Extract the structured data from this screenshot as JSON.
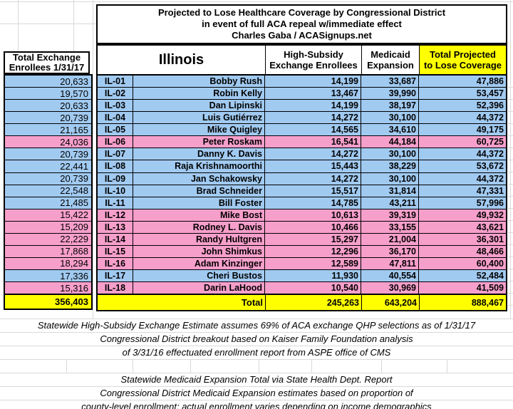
{
  "title": {
    "lines": [
      "Projected to Lose Healthcare Coverage by Congressional District",
      "in event of full ACA repeal w/immediate effect",
      "Charles Gaba / ACASignups.net"
    ]
  },
  "left_table": {
    "header": [
      "Total Exchange",
      "Enrollees 1/31/17"
    ],
    "total": "356,403"
  },
  "main_table": {
    "state": "Illinois",
    "headers": {
      "high_subsidy": [
        "High-Subsidy",
        "Exchange Enrollees"
      ],
      "medicaid": [
        "Medicaid",
        "Expansion"
      ],
      "total": [
        "Total Projected",
        "to Lose Coverage"
      ]
    },
    "rows": [
      {
        "district": "IL-01",
        "name": "Bobby Rush",
        "exchange_enrollees": "20,633",
        "high_subsidy": "14,199",
        "medicaid": "33,687",
        "total": "47,886",
        "party": "dem"
      },
      {
        "district": "IL-02",
        "name": "Robin Kelly",
        "exchange_enrollees": "19,570",
        "high_subsidy": "13,467",
        "medicaid": "39,990",
        "total": "53,457",
        "party": "dem"
      },
      {
        "district": "IL-03",
        "name": "Dan Lipinski",
        "exchange_enrollees": "20,633",
        "high_subsidy": "14,199",
        "medicaid": "38,197",
        "total": "52,396",
        "party": "dem"
      },
      {
        "district": "IL-04",
        "name": "Luis Gutiérrez",
        "exchange_enrollees": "20,739",
        "high_subsidy": "14,272",
        "medicaid": "30,100",
        "total": "44,372",
        "party": "dem"
      },
      {
        "district": "IL-05",
        "name": "Mike Quigley",
        "exchange_enrollees": "21,165",
        "high_subsidy": "14,565",
        "medicaid": "34,610",
        "total": "49,175",
        "party": "dem"
      },
      {
        "district": "IL-06",
        "name": "Peter Roskam",
        "exchange_enrollees": "24,036",
        "high_subsidy": "16,541",
        "medicaid": "44,184",
        "total": "60,725",
        "party": "gop"
      },
      {
        "district": "IL-07",
        "name": "Danny K. Davis",
        "exchange_enrollees": "20,739",
        "high_subsidy": "14,272",
        "medicaid": "30,100",
        "total": "44,372",
        "party": "dem"
      },
      {
        "district": "IL-08",
        "name": "Raja Krishnamoorthi",
        "exchange_enrollees": "22,441",
        "high_subsidy": "15,443",
        "medicaid": "38,229",
        "total": "53,672",
        "party": "dem"
      },
      {
        "district": "IL-09",
        "name": "Jan Schakowsky",
        "exchange_enrollees": "20,739",
        "high_subsidy": "14,272",
        "medicaid": "30,100",
        "total": "44,372",
        "party": "dem"
      },
      {
        "district": "IL-10",
        "name": "Brad Schneider",
        "exchange_enrollees": "22,548",
        "high_subsidy": "15,517",
        "medicaid": "31,814",
        "total": "47,331",
        "party": "dem"
      },
      {
        "district": "IL-11",
        "name": "Bill Foster",
        "exchange_enrollees": "21,485",
        "high_subsidy": "14,785",
        "medicaid": "43,211",
        "total": "57,996",
        "party": "dem"
      },
      {
        "district": "IL-12",
        "name": "Mike Bost",
        "exchange_enrollees": "15,422",
        "high_subsidy": "10,613",
        "medicaid": "39,319",
        "total": "49,932",
        "party": "gop"
      },
      {
        "district": "IL-13",
        "name": "Rodney L. Davis",
        "exchange_enrollees": "15,209",
        "high_subsidy": "10,466",
        "medicaid": "33,155",
        "total": "43,621",
        "party": "gop"
      },
      {
        "district": "IL-14",
        "name": "Randy Hultgren",
        "exchange_enrollees": "22,229",
        "high_subsidy": "15,297",
        "medicaid": "21,004",
        "total": "36,301",
        "party": "gop"
      },
      {
        "district": "IL-15",
        "name": "John Shimkus",
        "exchange_enrollees": "17,868",
        "high_subsidy": "12,296",
        "medicaid": "36,170",
        "total": "48,466",
        "party": "gop"
      },
      {
        "district": "IL-16",
        "name": "Adam Kinzinger",
        "exchange_enrollees": "18,294",
        "high_subsidy": "12,589",
        "medicaid": "47,811",
        "total": "60,400",
        "party": "gop"
      },
      {
        "district": "IL-17",
        "name": "Cheri Bustos",
        "exchange_enrollees": "17,336",
        "high_subsidy": "11,930",
        "medicaid": "40,554",
        "total": "52,484",
        "party": "dem"
      },
      {
        "district": "IL-18",
        "name": "Darin LaHood",
        "exchange_enrollees": "15,316",
        "high_subsidy": "10,540",
        "medicaid": "30,969",
        "total": "41,509",
        "party": "gop"
      }
    ],
    "total_row": {
      "label": "Total",
      "high_subsidy": "245,263",
      "medicaid": "643,204",
      "total": "888,467"
    }
  },
  "footnotes": {
    "exchange": [
      "Statewide High-Subsidy Exchange Estimate assumes 69% of ACA exchange QHP selections as of 1/31/17",
      "Congressional District breakout based on Kaiser Family Foundation analysis",
      "of 3/31/16 effectuated enrollment report from ASPE office of CMS"
    ],
    "medicaid": [
      "Statewide Medicaid Expansion Total via State Health Dept. Report",
      "Congressional District Medicaid Expansion estimates based on proportion of",
      "county-level enrollment; actual enrollment varies depending on income demographics"
    ]
  },
  "colors": {
    "democrat_row": "#a1caf1",
    "republican_row": "#f79fcb",
    "highlight_yellow": "#ffff00",
    "gridline": "#d9d9d9"
  },
  "chart_data": {
    "type": "table",
    "title": "Projected to Lose Healthcare Coverage by Congressional District in event of full ACA repeal w/immediate effect — Illinois (Charles Gaba / ACASignups.net)",
    "columns": [
      "Total Exchange Enrollees 1/31/17",
      "District",
      "Representative",
      "High-Subsidy Exchange Enrollees",
      "Medicaid Expansion",
      "Total Projected to Lose Coverage",
      "Party color"
    ],
    "rows": [
      [
        20633,
        "IL-01",
        "Bobby Rush",
        14199,
        33687,
        47886,
        "blue"
      ],
      [
        19570,
        "IL-02",
        "Robin Kelly",
        13467,
        39990,
        53457,
        "blue"
      ],
      [
        20633,
        "IL-03",
        "Dan Lipinski",
        14199,
        38197,
        52396,
        "blue"
      ],
      [
        20739,
        "IL-04",
        "Luis Gutiérrez",
        14272,
        30100,
        44372,
        "blue"
      ],
      [
        21165,
        "IL-05",
        "Mike Quigley",
        14565,
        34610,
        49175,
        "blue"
      ],
      [
        24036,
        "IL-06",
        "Peter Roskam",
        16541,
        44184,
        60725,
        "pink"
      ],
      [
        20739,
        "IL-07",
        "Danny K. Davis",
        14272,
        30100,
        44372,
        "blue"
      ],
      [
        22441,
        "IL-08",
        "Raja Krishnamoorthi",
        15443,
        38229,
        53672,
        "blue"
      ],
      [
        20739,
        "IL-09",
        "Jan Schakowsky",
        14272,
        30100,
        44372,
        "blue"
      ],
      [
        22548,
        "IL-10",
        "Brad Schneider",
        15517,
        31814,
        47331,
        "blue"
      ],
      [
        21485,
        "IL-11",
        "Bill Foster",
        14785,
        43211,
        57996,
        "blue"
      ],
      [
        15422,
        "IL-12",
        "Mike Bost",
        10613,
        39319,
        49932,
        "pink"
      ],
      [
        15209,
        "IL-13",
        "Rodney L. Davis",
        10466,
        33155,
        43621,
        "pink"
      ],
      [
        22229,
        "IL-14",
        "Randy Hultgren",
        15297,
        21004,
        36301,
        "pink"
      ],
      [
        17868,
        "IL-15",
        "John Shimkus",
        12296,
        36170,
        48466,
        "pink"
      ],
      [
        18294,
        "IL-16",
        "Adam Kinzinger",
        12589,
        47811,
        60400,
        "pink"
      ],
      [
        17336,
        "IL-17",
        "Cheri Bustos",
        11930,
        40554,
        52484,
        "blue"
      ],
      [
        15316,
        "IL-18",
        "Darin LaHood",
        10540,
        30969,
        41509,
        "pink"
      ]
    ],
    "totals": {
      "exchange_enrollees": 356403,
      "high_subsidy": 245263,
      "medicaid": 643204,
      "total_lose_coverage": 888467
    }
  }
}
